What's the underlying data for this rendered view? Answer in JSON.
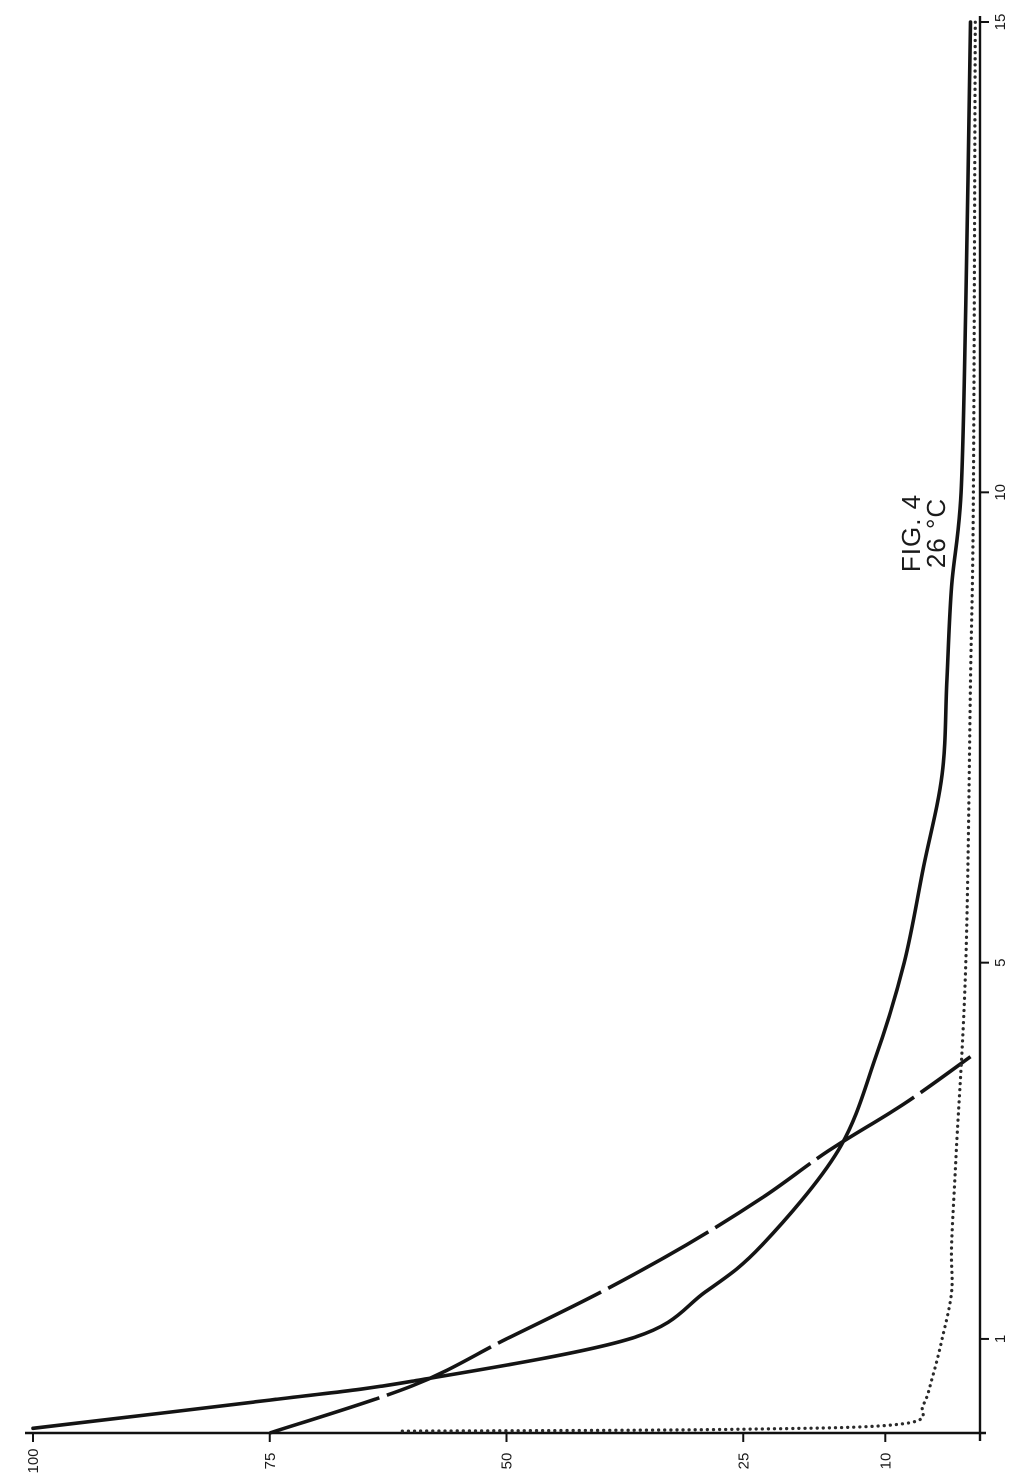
{
  "figure": {
    "caption": "FIG. 4",
    "temperature": "26 °C"
  },
  "chart_data": {
    "type": "line",
    "title": "FIG. 4",
    "subtitle": "26 °C",
    "xlabel": "",
    "ylabel": "",
    "orientation": "rotated 90° counter-clockwise",
    "xlim": [
      0,
      15
    ],
    "ylim": [
      0,
      100
    ],
    "x_ticks": [
      1,
      5,
      10,
      15
    ],
    "y_ticks": [
      100,
      75,
      50,
      25,
      10
    ],
    "grid": false,
    "legend": "none",
    "series": [
      {
        "style": "solid",
        "points": [
          [
            0.05,
            100
          ],
          [
            0.35,
            75
          ],
          [
            0.55,
            60
          ],
          [
            1.0,
            37
          ],
          [
            1.5,
            29
          ],
          [
            2.0,
            23
          ],
          [
            3.0,
            15
          ],
          [
            4.0,
            11
          ],
          [
            5.0,
            8
          ],
          [
            6.0,
            6
          ],
          [
            7.0,
            4
          ],
          [
            8.0,
            3.5
          ],
          [
            9.0,
            3
          ],
          [
            10.0,
            2
          ],
          [
            12.0,
            1.5
          ],
          [
            15.0,
            1
          ]
        ]
      },
      {
        "style": "dashed",
        "points": [
          [
            0,
            75
          ],
          [
            0.5,
            60
          ],
          [
            1.0,
            50
          ],
          [
            1.5,
            40
          ],
          [
            2.0,
            31
          ],
          [
            2.5,
            23
          ],
          [
            3.0,
            16
          ],
          [
            3.5,
            8
          ],
          [
            4.0,
            1
          ]
        ]
      },
      {
        "style": "dotted",
        "points": [
          [
            0.02,
            61
          ],
          [
            0.04,
            25
          ],
          [
            0.1,
            8
          ],
          [
            0.3,
            6
          ],
          [
            0.6,
            5
          ],
          [
            1.0,
            4
          ],
          [
            1.5,
            3
          ],
          [
            2.0,
            3
          ],
          [
            3.0,
            2.5
          ],
          [
            5.0,
            1.5
          ],
          [
            8.0,
            1
          ],
          [
            10.0,
            0.7
          ],
          [
            15.0,
            0.5
          ]
        ]
      }
    ]
  }
}
